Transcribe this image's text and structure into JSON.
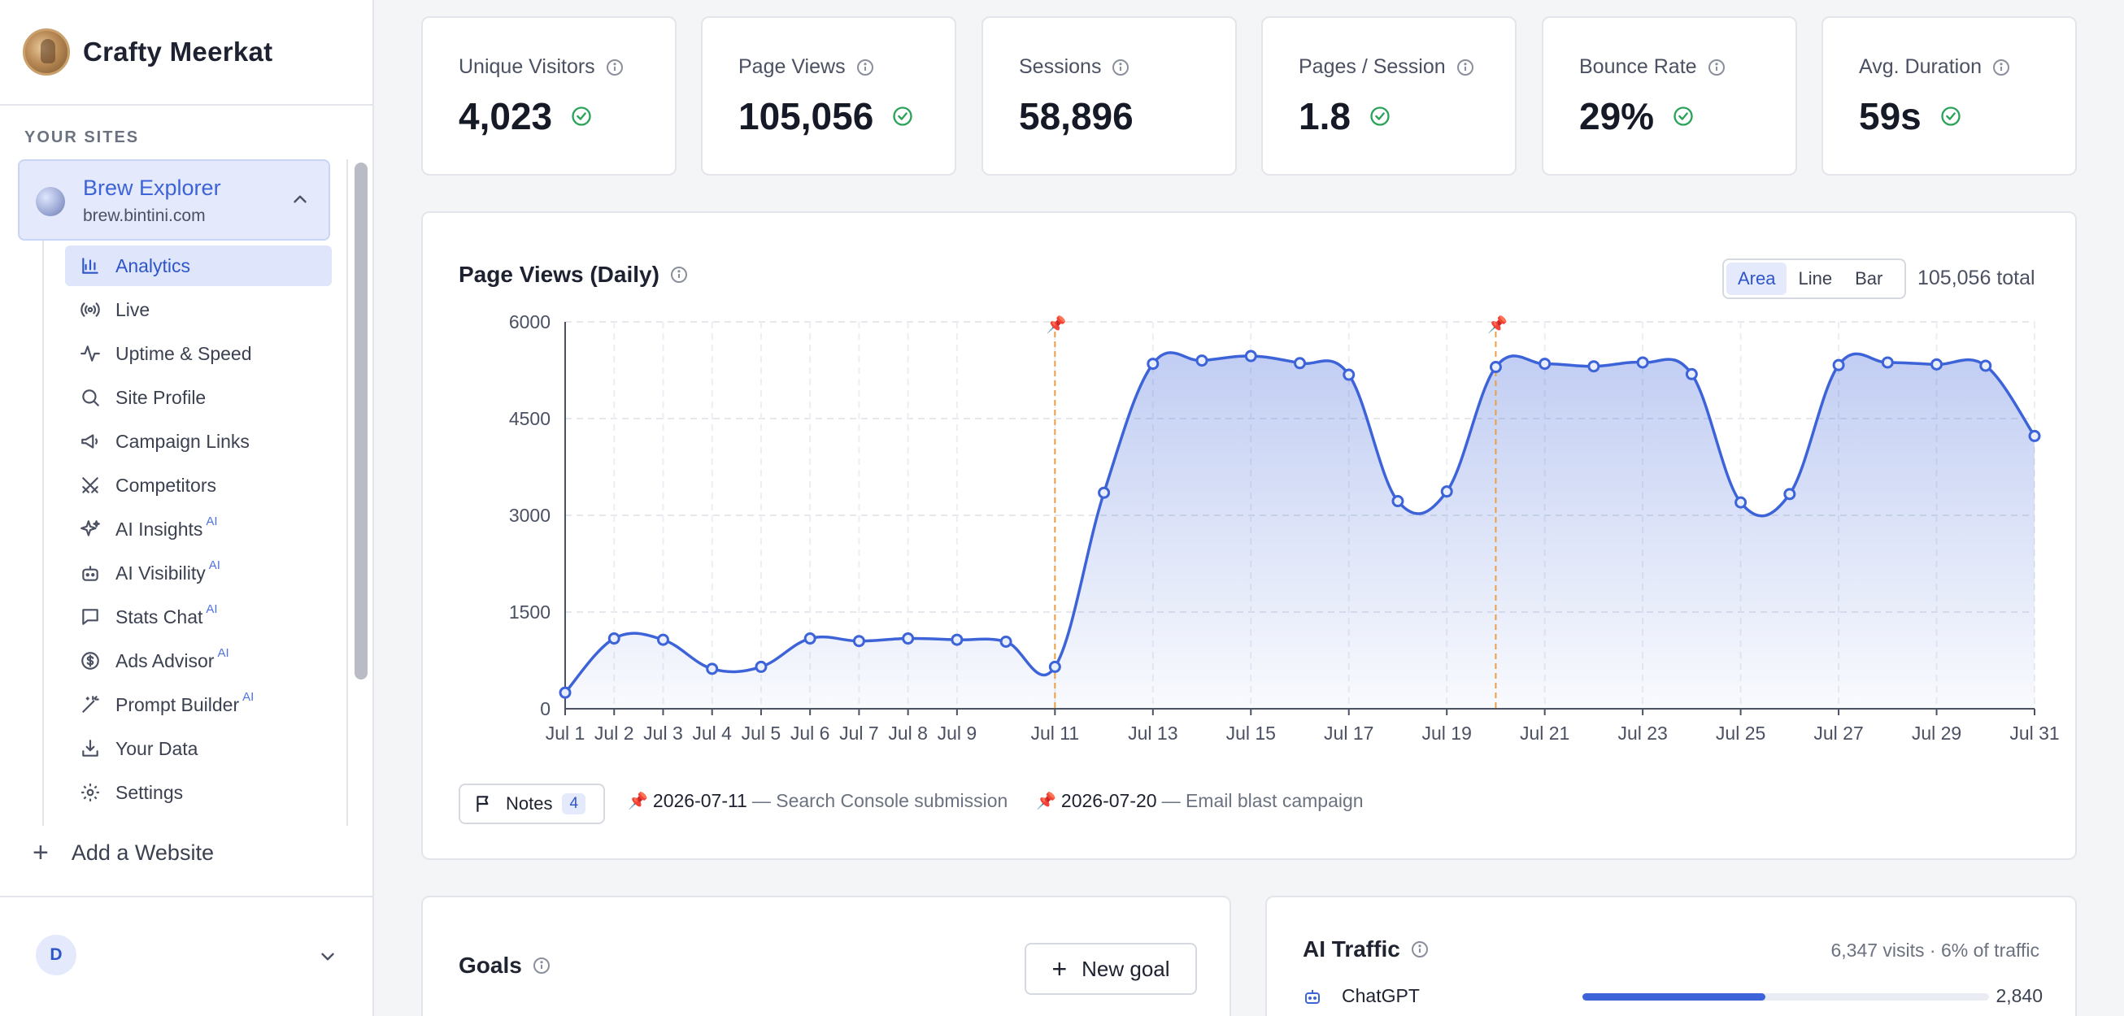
{
  "brand": {
    "name": "Crafty Meerkat"
  },
  "sidebar": {
    "section_label": "YOUR SITES",
    "site": {
      "name": "Brew Explorer",
      "url": "brew.bintini.com"
    },
    "nav": [
      {
        "label": "Analytics",
        "icon": "bar-chart-icon",
        "ai": ""
      },
      {
        "label": "Live",
        "icon": "broadcast-icon",
        "ai": ""
      },
      {
        "label": "Uptime & Speed",
        "icon": "activity-icon",
        "ai": ""
      },
      {
        "label": "Site Profile",
        "icon": "search-icon",
        "ai": ""
      },
      {
        "label": "Campaign Links",
        "icon": "megaphone-icon",
        "ai": ""
      },
      {
        "label": "Competitors",
        "icon": "swords-icon",
        "ai": ""
      },
      {
        "label": "AI Insights",
        "icon": "sparkles-icon",
        "ai": "AI"
      },
      {
        "label": "AI Visibility",
        "icon": "robot-icon",
        "ai": "AI"
      },
      {
        "label": "Stats Chat",
        "icon": "chat-icon",
        "ai": "AI"
      },
      {
        "label": "Ads Advisor",
        "icon": "dollar-icon",
        "ai": "AI"
      },
      {
        "label": "Prompt Builder",
        "icon": "wand-icon",
        "ai": "AI"
      },
      {
        "label": "Your Data",
        "icon": "download-icon",
        "ai": ""
      },
      {
        "label": "Settings",
        "icon": "gear-icon",
        "ai": ""
      }
    ],
    "add_site": "Add a Website",
    "avatar_initial": "D"
  },
  "stats": [
    {
      "label": "Unique Visitors",
      "value": "4,023",
      "check": true
    },
    {
      "label": "Page Views",
      "value": "105,056",
      "check": true
    },
    {
      "label": "Sessions",
      "value": "58,896",
      "check": false
    },
    {
      "label": "Pages / Session",
      "value": "1.8",
      "check": true
    },
    {
      "label": "Bounce Rate",
      "value": "29%",
      "check": true
    },
    {
      "label": "Avg. Duration",
      "value": "59s",
      "check": true
    }
  ],
  "chart_panel": {
    "title": "Page Views (Daily)",
    "modes": [
      "Area",
      "Line",
      "Bar"
    ],
    "active_mode": "Area",
    "total": "105,056 total",
    "notes_label": "Notes",
    "notes_count": "4",
    "notes": [
      {
        "date": "2026-07-11",
        "text": "— Search Console submission"
      },
      {
        "date": "2026-07-20",
        "text": "— Email blast campaign"
      }
    ]
  },
  "chart_data": {
    "type": "area",
    "x": [
      "Jul 1",
      "Jul 2",
      "Jul 3",
      "Jul 4",
      "Jul 5",
      "Jul 6",
      "Jul 7",
      "Jul 8",
      "Jul 9",
      "Jul 10",
      "Jul 11",
      "Jul 12",
      "Jul 13",
      "Jul 14",
      "Jul 15",
      "Jul 16",
      "Jul 17",
      "Jul 18",
      "Jul 19",
      "Jul 20",
      "Jul 21",
      "Jul 22",
      "Jul 23",
      "Jul 24",
      "Jul 25",
      "Jul 26",
      "Jul 27",
      "Jul 28",
      "Jul 29",
      "Jul 30",
      "Jul 31"
    ],
    "x_tick_labels": [
      "Jul 1",
      "Jul 2",
      "Jul 3",
      "Jul 4",
      "Jul 5",
      "Jul 6",
      "Jul 7",
      "Jul 8",
      "Jul 9",
      "Jul 11",
      "Jul 13",
      "Jul 15",
      "Jul 17",
      "Jul 19",
      "Jul 21",
      "Jul 23",
      "Jul 25",
      "Jul 27",
      "Jul 29",
      "Jul 31"
    ],
    "values": [
      250,
      1090,
      1070,
      620,
      650,
      1090,
      1050,
      1090,
      1070,
      1040,
      650,
      3350,
      5350,
      5400,
      5470,
      5360,
      5180,
      3220,
      3370,
      5300,
      5350,
      5310,
      5370,
      5190,
      3200,
      3330,
      5330,
      5370,
      5340,
      5320,
      4230
    ],
    "ylim": [
      0,
      6000
    ],
    "y_ticks": [
      0,
      1500,
      3000,
      4500,
      6000
    ],
    "annotations": [
      "Jul 11",
      "Jul 20"
    ],
    "grid": true,
    "color": "#3d63d8",
    "annotation_color": "#e8a046"
  },
  "goals": {
    "title": "Goals",
    "new_goal": "New goal"
  },
  "ai_traffic": {
    "title": "AI Traffic",
    "summary": "6,347 visits · 6% of traffic",
    "rows": [
      {
        "name": "ChatGPT",
        "value": "2,840",
        "share": 0.45
      }
    ]
  },
  "colors": {
    "accent": "#3d63d8",
    "success": "#2aa35a",
    "annotation": "#e8a046"
  }
}
